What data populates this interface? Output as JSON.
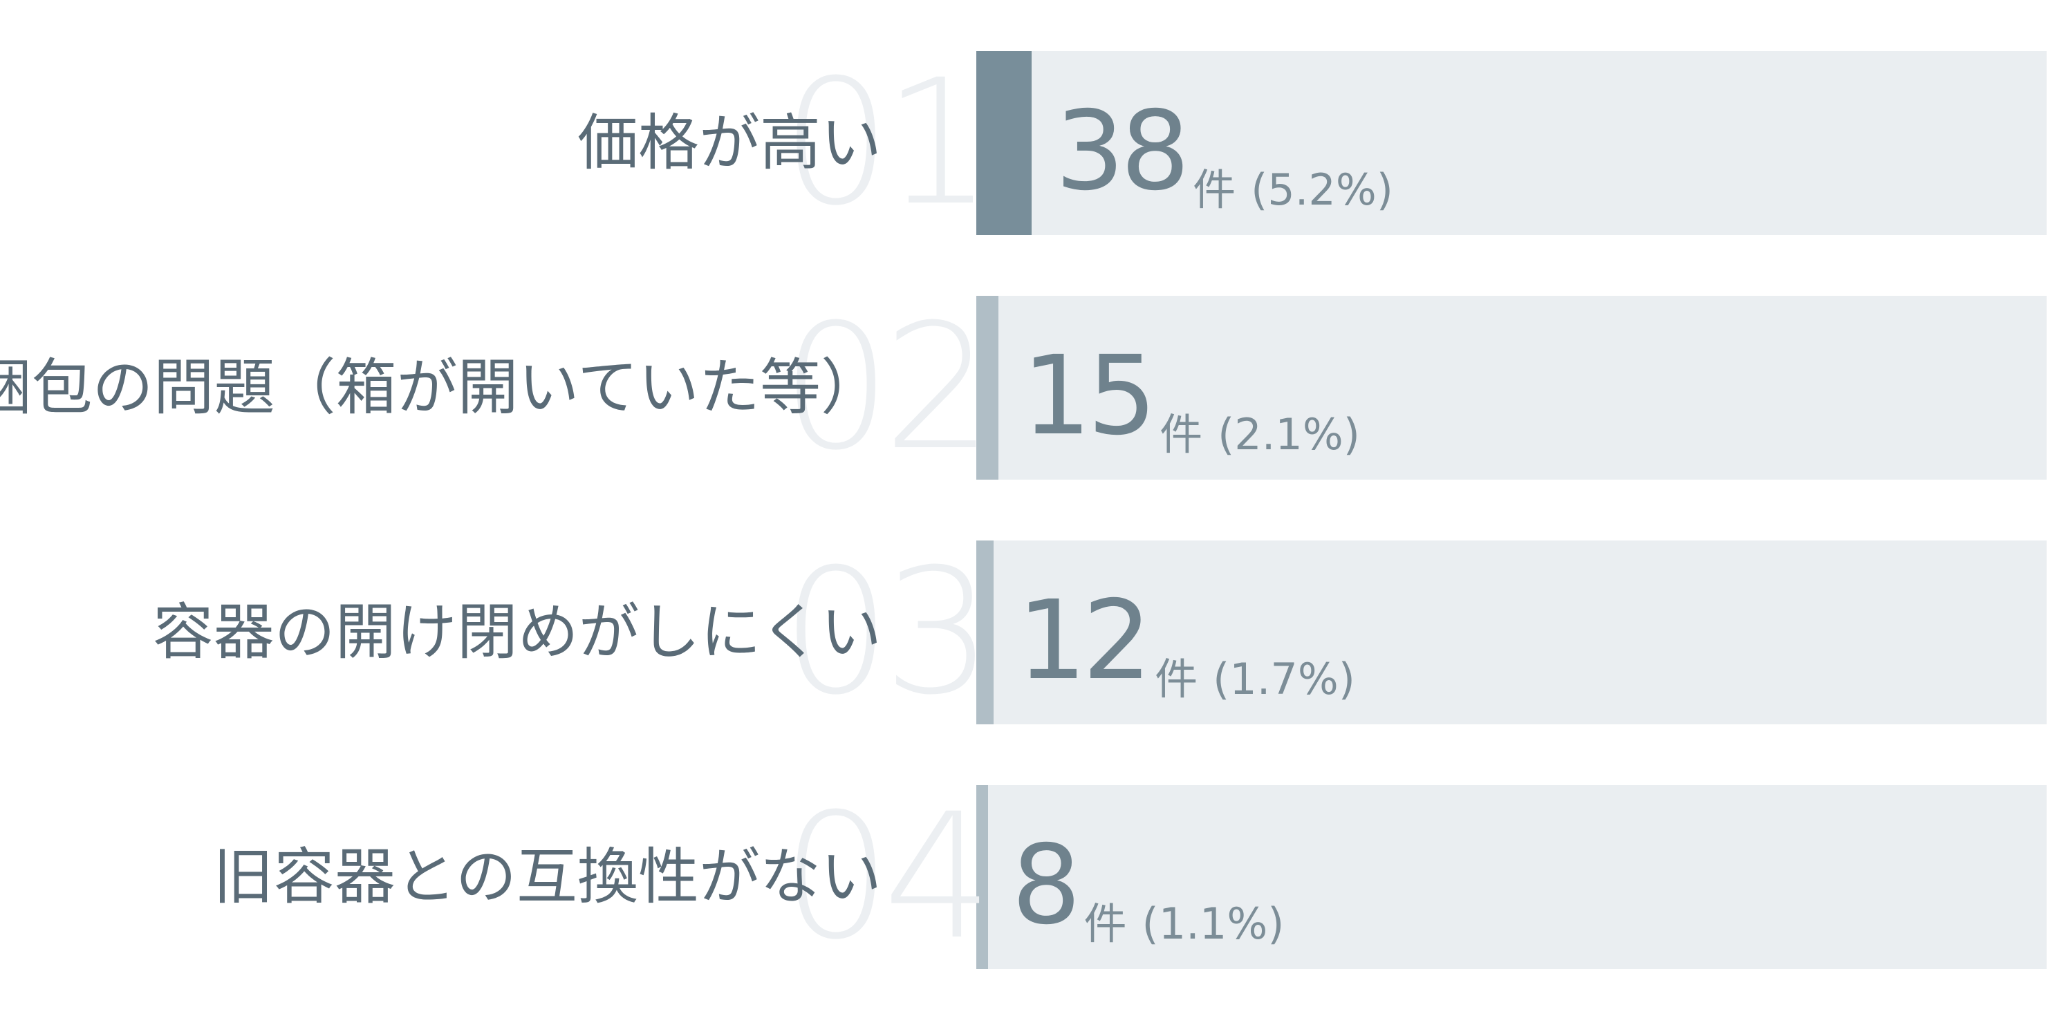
{
  "chart_data": {
    "type": "bar",
    "orientation": "horizontal",
    "ranks": [
      "01",
      "02",
      "03",
      "04"
    ],
    "categories": [
      "価格が高い",
      "梱包の問題（箱が開いていた等）",
      "容器の開け閉めがしにくい",
      "旧容器との互換性がない"
    ],
    "values": [
      38,
      15,
      12,
      8
    ],
    "value_unit": "件",
    "percent_labels": [
      "(5.2%)",
      "(2.1%)",
      "(1.7%)",
      "(1.1%)"
    ],
    "percent_values": [
      5.2,
      2.1,
      1.7,
      1.1
    ],
    "max_value": 731,
    "colors": {
      "top_bar": "#788e9a",
      "other_bars": "#b0bec6",
      "track": "#eaeef1",
      "label": "#5a6b77",
      "value": "#6f828d",
      "rank": "#eceff2"
    }
  }
}
